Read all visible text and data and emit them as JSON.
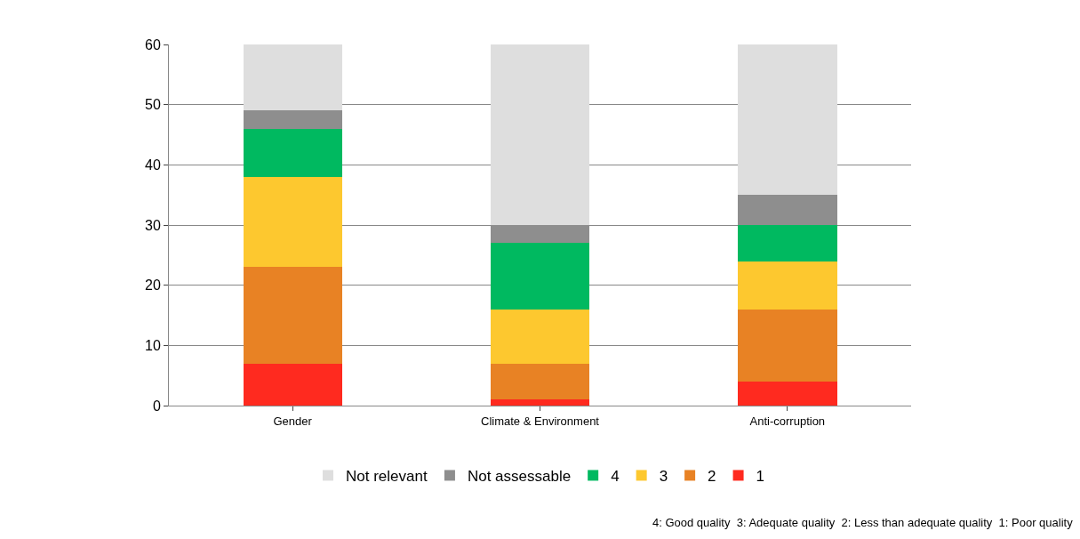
{
  "chart_data": {
    "type": "bar",
    "stacked": true,
    "categories": [
      "Gender",
      "Climate & Environment",
      "Anti-corruption"
    ],
    "series": [
      {
        "name": "1",
        "color": "#ff2a1f",
        "values": [
          7,
          1,
          4
        ]
      },
      {
        "name": "2",
        "color": "#e88224",
        "values": [
          16,
          6,
          12
        ]
      },
      {
        "name": "3",
        "color": "#fdc82f",
        "values": [
          15,
          9,
          8
        ]
      },
      {
        "name": "4",
        "color": "#00b960",
        "values": [
          8,
          11,
          6
        ]
      },
      {
        "name": "Not assessable",
        "color": "#8e8e8e",
        "values": [
          3,
          3,
          5
        ]
      },
      {
        "name": "Not relevant",
        "color": "#dedede",
        "values": [
          11,
          30,
          25
        ]
      }
    ],
    "ylim": [
      0,
      60
    ],
    "yticks": [
      0,
      10,
      20,
      30,
      40,
      50,
      60
    ],
    "grid": "y",
    "legend": "bottom",
    "annotations": [
      "4: Good quality  3: Adequate quality  2: Less than adequate quality  1: Poor quality"
    ]
  }
}
